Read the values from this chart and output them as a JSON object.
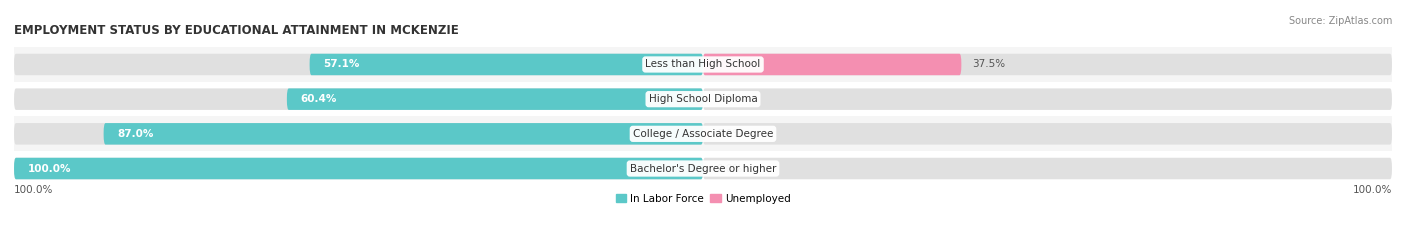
{
  "title": "EMPLOYMENT STATUS BY EDUCATIONAL ATTAINMENT IN MCKENZIE",
  "source": "Source: ZipAtlas.com",
  "categories": [
    "Less than High School",
    "High School Diploma",
    "College / Associate Degree",
    "Bachelor's Degree or higher"
  ],
  "labor_force": [
    57.1,
    60.4,
    87.0,
    100.0
  ],
  "unemployed": [
    37.5,
    0.0,
    0.0,
    0.0
  ],
  "labor_force_color": "#5bc8c8",
  "unemployed_color": "#f48fb1",
  "row_bg_odd": "#f5f5f5",
  "row_bg_even": "#ffffff",
  "bar_bg_color": "#e0e0e0",
  "title_fontsize": 8.5,
  "source_fontsize": 7,
  "label_fontsize": 7.5,
  "category_fontsize": 7.5,
  "legend_fontsize": 7.5,
  "axis_label_left": "100.0%",
  "axis_label_right": "100.0%",
  "x_min": -100,
  "x_max": 100
}
